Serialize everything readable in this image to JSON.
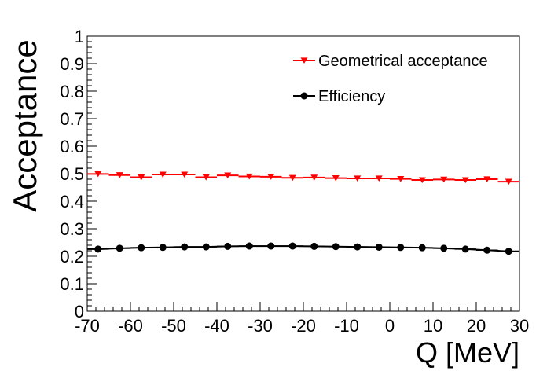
{
  "chart_data": {
    "type": "line",
    "title": "",
    "xlabel": "Q [MeV]",
    "ylabel": "Acceptance",
    "xlim": [
      -70,
      30
    ],
    "ylim": [
      0,
      1
    ],
    "x_tick_labels": [
      "-70",
      "-60",
      "-50",
      "-40",
      "-30",
      "-20",
      "-10",
      "0",
      "10",
      "20",
      "30"
    ],
    "y_tick_labels": [
      "0",
      "0.1",
      "0.2",
      "0.3",
      "0.4",
      "0.5",
      "0.6",
      "0.7",
      "0.8",
      "0.9",
      "1"
    ],
    "legend_position": "top-right",
    "x": [
      -67.5,
      -62.5,
      -57.5,
      -52.5,
      -47.5,
      -42.5,
      -37.5,
      -32.5,
      -27.5,
      -22.5,
      -17.5,
      -12.5,
      -7.5,
      -2.5,
      2.5,
      7.5,
      12.5,
      17.5,
      22.5,
      27.5
    ],
    "series": [
      {
        "name": "Geometrical acceptance",
        "color": "#ff0000",
        "marker": "triangle-down",
        "line": "step",
        "values": [
          0.499,
          0.495,
          0.487,
          0.497,
          0.497,
          0.487,
          0.494,
          0.49,
          0.489,
          0.485,
          0.486,
          0.484,
          0.483,
          0.483,
          0.481,
          0.477,
          0.479,
          0.477,
          0.48,
          0.471
        ]
      },
      {
        "name": "Efficiency",
        "color": "#000000",
        "marker": "circle",
        "line": "smooth",
        "values": [
          0.226,
          0.229,
          0.231,
          0.232,
          0.234,
          0.234,
          0.236,
          0.237,
          0.237,
          0.237,
          0.236,
          0.235,
          0.234,
          0.233,
          0.232,
          0.231,
          0.229,
          0.226,
          0.222,
          0.218
        ]
      }
    ]
  }
}
